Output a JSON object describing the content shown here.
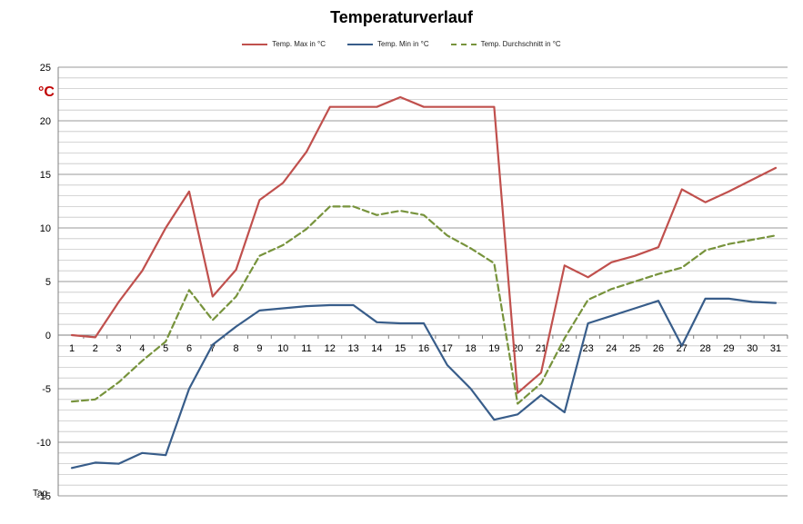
{
  "chart_data": {
    "type": "line",
    "title": "Temperaturverlauf",
    "xlabel": "Tag",
    "ylabel": "",
    "unit_label": "°C",
    "unit_color": "#C00000",
    "x": [
      1,
      2,
      3,
      4,
      5,
      6,
      7,
      8,
      9,
      10,
      11,
      12,
      13,
      14,
      15,
      16,
      17,
      18,
      19,
      20,
      21,
      22,
      23,
      24,
      25,
      26,
      27,
      28,
      29,
      30,
      31
    ],
    "ylim": [
      -15,
      25
    ],
    "yticks": [
      -15,
      -10,
      -5,
      0,
      5,
      10,
      15,
      20,
      25
    ],
    "ytick_labels": [
      "-15",
      "-10",
      "-5",
      "0",
      "5",
      "10",
      "15",
      "20",
      "25"
    ],
    "grid": true,
    "legend_position": "top-center",
    "series": [
      {
        "name": "Temp. Max in °C",
        "color": "#C0504D",
        "style": "solid",
        "values": [
          0,
          -0.2,
          3.1,
          6.0,
          10.0,
          13.4,
          3.6,
          6.1,
          12.6,
          14.2,
          17.1,
          21.3,
          21.3,
          21.3,
          22.2,
          21.3,
          21.3,
          21.3,
          21.3,
          -5.4,
          -3.5,
          6.5,
          5.4,
          6.8,
          7.4,
          8.2,
          13.6,
          12.4,
          13.4,
          14.5,
          15.6
        ]
      },
      {
        "name": "Temp. Min in °C",
        "color": "#385D8A",
        "style": "solid",
        "values": [
          -12.4,
          -11.9,
          -12.0,
          -11.0,
          -11.2,
          -5.0,
          -0.9,
          0.8,
          2.3,
          2.5,
          2.7,
          2.8,
          2.8,
          1.2,
          1.1,
          1.1,
          -2.8,
          -5.0,
          -7.9,
          -7.4,
          -5.6,
          -7.2,
          1.1,
          1.8,
          2.5,
          3.2,
          -1.0,
          3.4,
          3.4,
          3.1,
          3.0
        ]
      },
      {
        "name": "Temp. Durchschnitt in °C",
        "color": "#77933C",
        "style": "dashed",
        "values": [
          -6.2,
          -6.0,
          -4.4,
          -2.4,
          -0.6,
          4.2,
          1.4,
          3.6,
          7.4,
          8.4,
          9.9,
          12.0,
          12.0,
          11.2,
          11.6,
          11.2,
          9.3,
          8.1,
          6.7,
          -6.4,
          -4.5,
          -0.3,
          3.3,
          4.3,
          5.0,
          5.7,
          6.3,
          7.9,
          8.5,
          8.9,
          9.3
        ]
      }
    ]
  }
}
